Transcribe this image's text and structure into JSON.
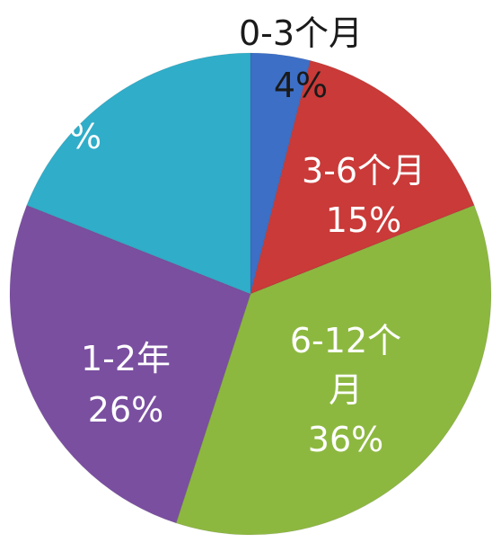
{
  "chart_data": {
    "type": "pie",
    "title": "",
    "legend": "none",
    "slices": [
      {
        "name": "0-3个月",
        "value": 4,
        "label_lines": [
          "0-3个月",
          "4%"
        ],
        "color": "#3d6fc6",
        "label_color": "#1a1a1a"
      },
      {
        "name": "3-6个月",
        "value": 15,
        "label_lines": [
          "3-6个月",
          "15%"
        ],
        "color": "#c93a38",
        "label_color": "#ffffff"
      },
      {
        "name": "6-12个月",
        "value": 36,
        "label_lines": [
          "6-12个",
          "月",
          "36%"
        ],
        "color": "#8db840",
        "label_color": "#ffffff"
      },
      {
        "name": "1-2年",
        "value": 26,
        "label_lines": [
          "1-2年",
          "26%"
        ],
        "color": "#7a4fa0",
        "label_color": "#ffffff"
      },
      {
        "name": "",
        "value": 19,
        "label_lines": [
          "%"
        ],
        "color": "#30adc9",
        "label_color": "#ffffff"
      }
    ]
  }
}
